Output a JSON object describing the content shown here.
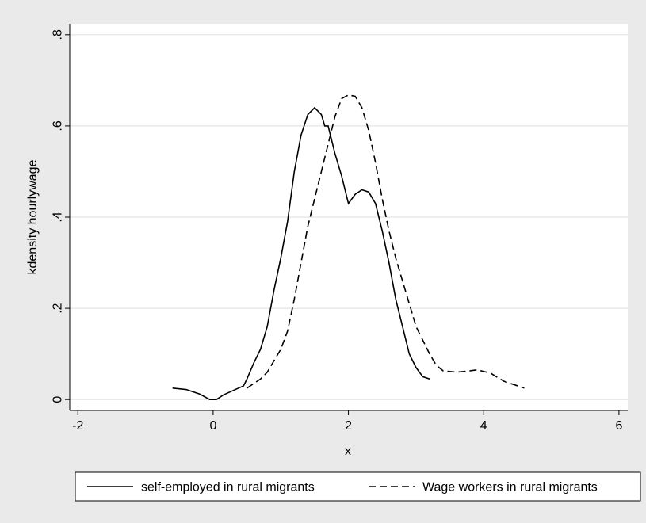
{
  "chart_data": {
    "type": "line",
    "xlabel": "x",
    "ylabel": "kdensity hourlywage",
    "xlim": [
      -2.12,
      6.13
    ],
    "xticks": [
      -2,
      0,
      2,
      4,
      6
    ],
    "ylim": [
      -0.024,
      0.824
    ],
    "yticks": [
      0,
      {
        "value": 0.2,
        "label": ".2"
      },
      {
        "value": 0.4,
        "label": ".4"
      },
      {
        "value": 0.6,
        "label": ".6"
      },
      {
        "value": 0.8,
        "label": ".8"
      }
    ],
    "grid": true,
    "legend": "bottom",
    "series": [
      {
        "name": "self-employed in rural migrants",
        "color": "#000000",
        "line_style": "solid",
        "x": [
          -0.6,
          -0.4,
          -0.2,
          -0.05,
          0.05,
          0.15,
          0.3,
          0.45,
          0.5,
          0.6,
          0.7,
          0.8,
          0.9,
          1.0,
          1.1,
          1.2,
          1.3,
          1.4,
          1.5,
          1.6,
          1.65,
          1.7,
          1.8,
          1.9,
          2.0,
          2.1,
          2.2,
          2.3,
          2.4,
          2.5,
          2.6,
          2.7,
          2.8,
          2.9,
          3.0,
          3.1,
          3.2
        ],
        "values": [
          0.025,
          0.022,
          0.012,
          0,
          0,
          0.01,
          0.02,
          0.03,
          0.045,
          0.08,
          0.11,
          0.16,
          0.24,
          0.31,
          0.39,
          0.5,
          0.58,
          0.625,
          0.64,
          0.625,
          0.6,
          0.6,
          0.54,
          0.49,
          0.43,
          0.45,
          0.46,
          0.455,
          0.43,
          0.37,
          0.3,
          0.22,
          0.16,
          0.1,
          0.07,
          0.05,
          0.045
        ]
      },
      {
        "name": "Wage workers in rural migrants",
        "color": "#000000",
        "line_style": "dashed",
        "x": [
          0.5,
          0.6,
          0.7,
          0.8,
          0.9,
          1.0,
          1.1,
          1.2,
          1.3,
          1.4,
          1.5,
          1.6,
          1.7,
          1.8,
          1.9,
          2.0,
          2.1,
          2.2,
          2.3,
          2.4,
          2.5,
          2.6,
          2.7,
          2.8,
          2.9,
          3.0,
          3.1,
          3.2,
          3.3,
          3.4,
          3.6,
          3.8,
          3.9,
          4.1,
          4.3,
          4.6
        ],
        "values": [
          0.025,
          0.035,
          0.045,
          0.06,
          0.085,
          0.11,
          0.15,
          0.22,
          0.3,
          0.38,
          0.44,
          0.5,
          0.56,
          0.62,
          0.66,
          0.668,
          0.665,
          0.64,
          0.59,
          0.52,
          0.44,
          0.37,
          0.31,
          0.26,
          0.21,
          0.16,
          0.13,
          0.1,
          0.075,
          0.063,
          0.06,
          0.063,
          0.065,
          0.058,
          0.04,
          0.025
        ]
      }
    ]
  }
}
